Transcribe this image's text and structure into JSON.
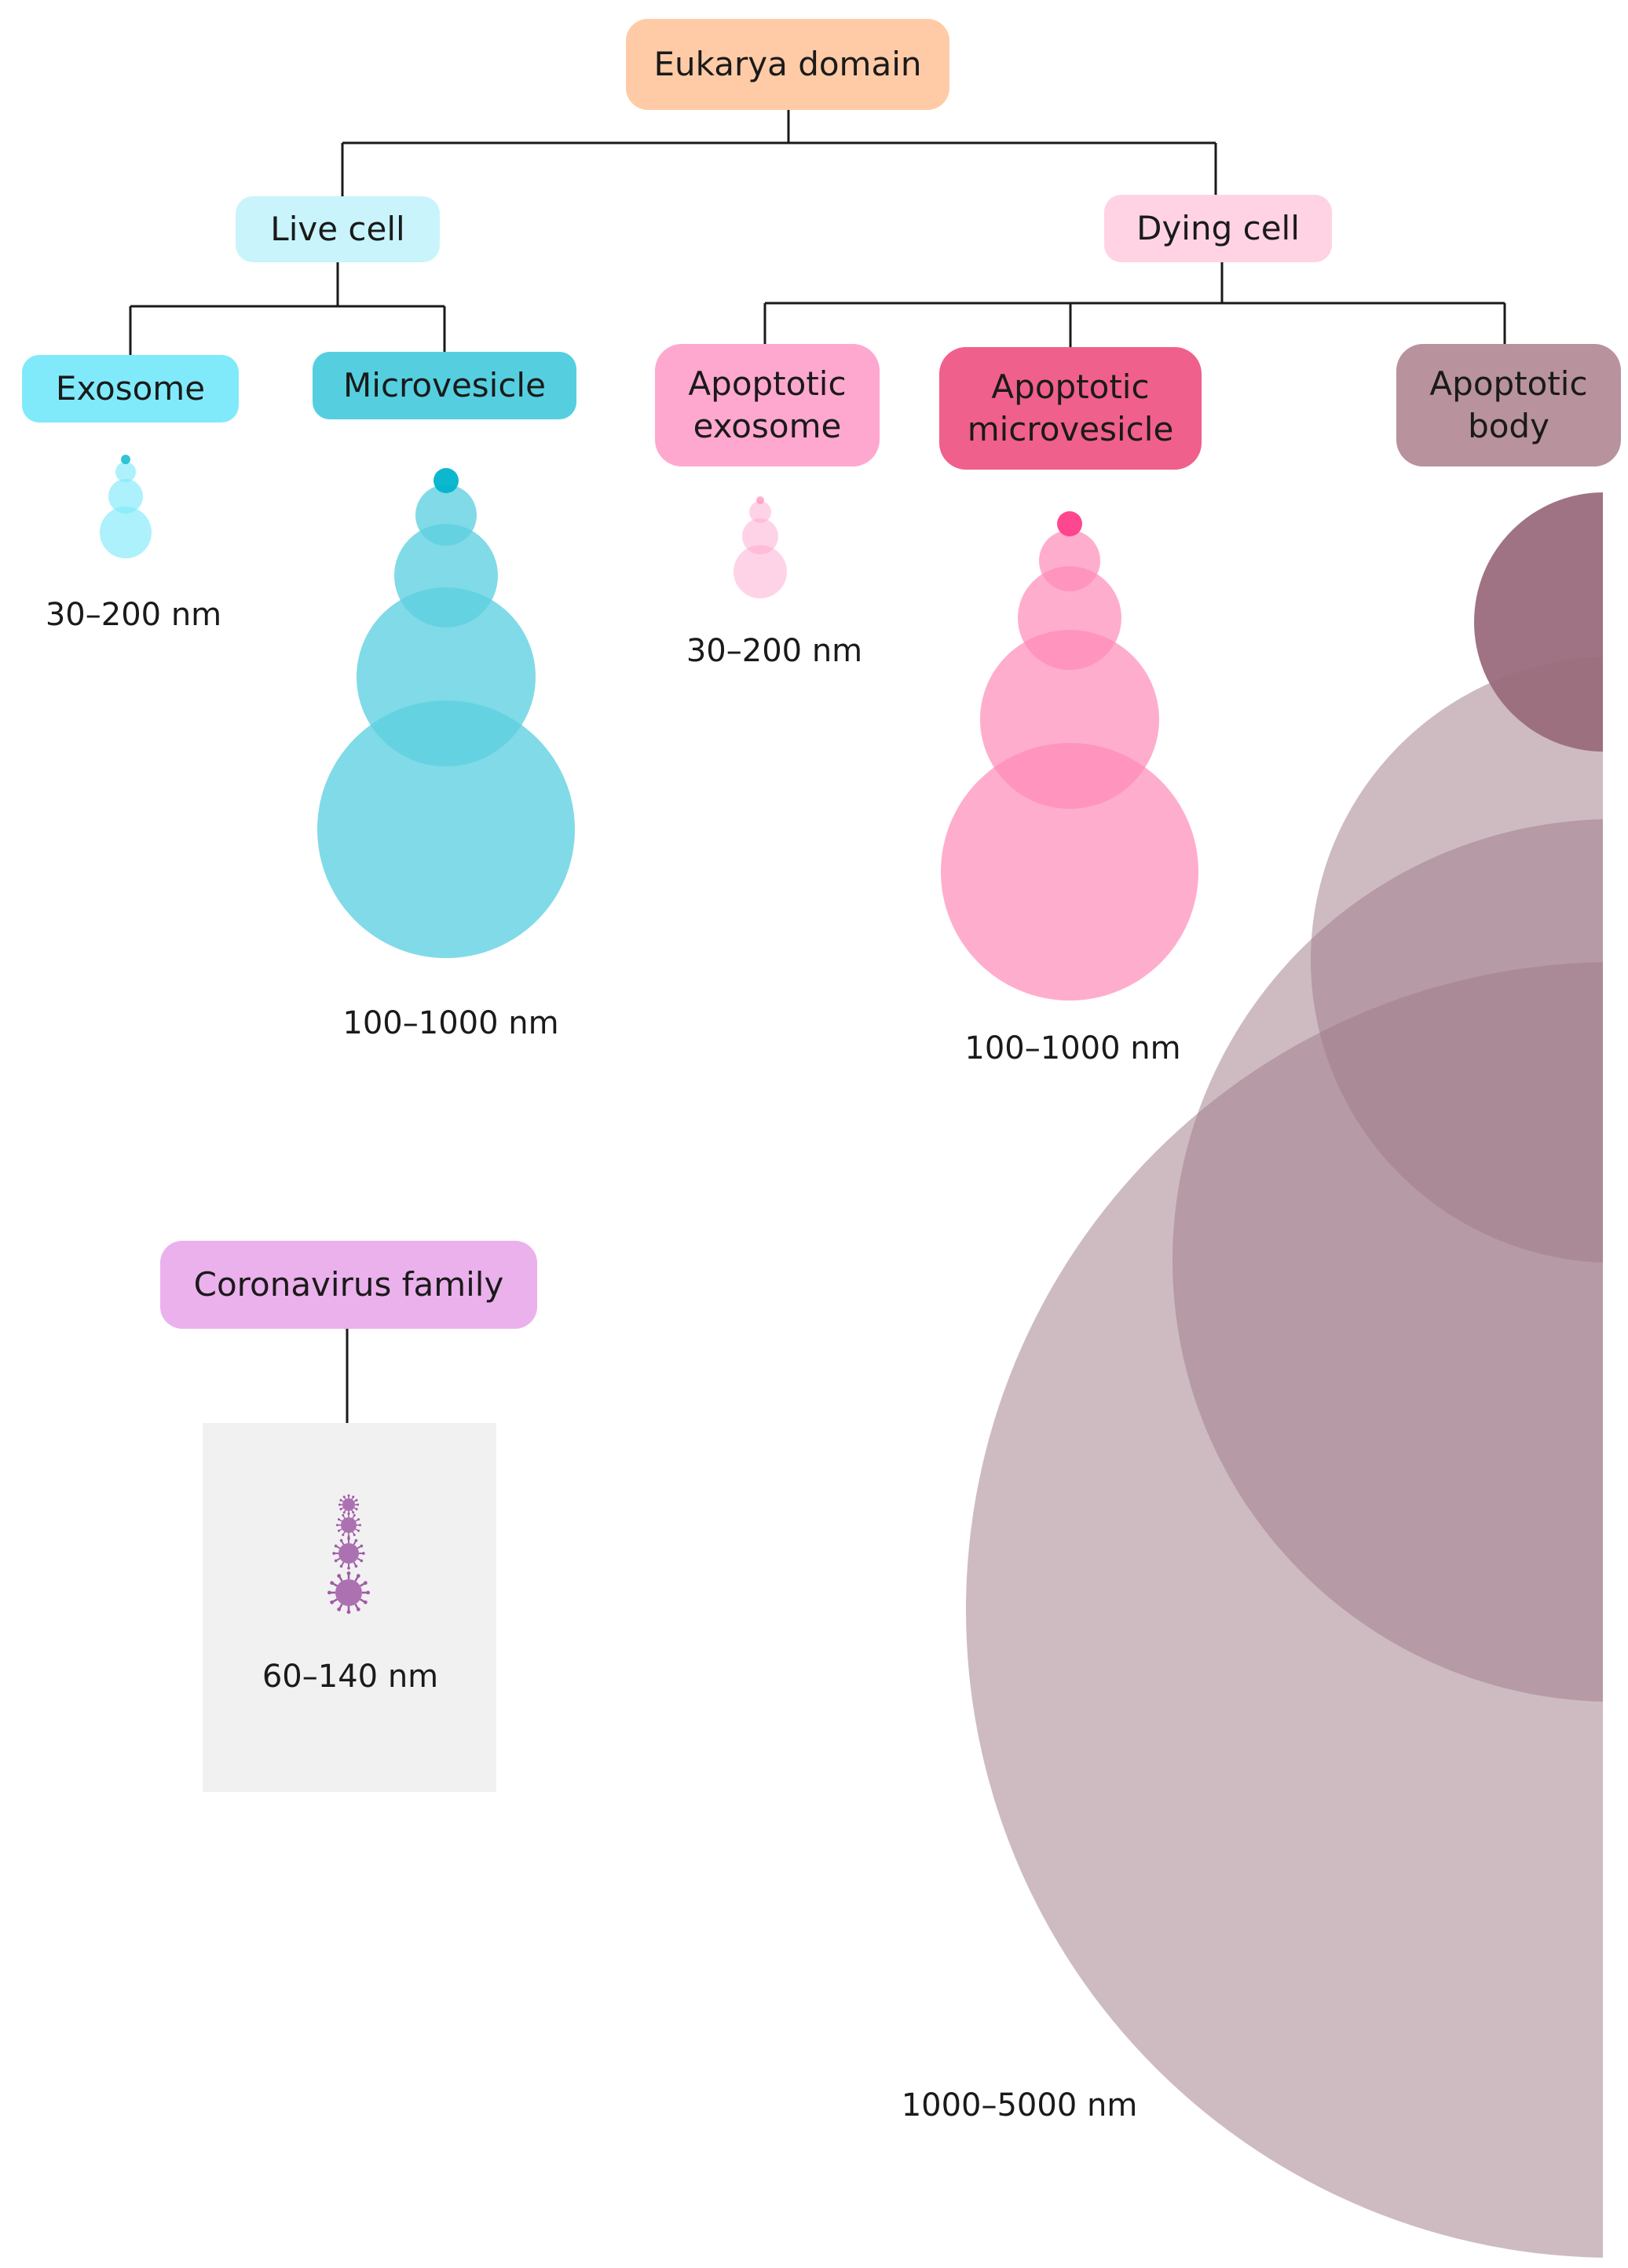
{
  "nodes": {
    "eukarya": {
      "label": "Eukarya domain",
      "color": "#ffcba6"
    },
    "live_cell": {
      "label": "Live cell",
      "color": "#c9f4fb"
    },
    "dying_cell": {
      "label": "Dying cell",
      "color": "#ffd3e3"
    },
    "exosome": {
      "label": "Exosome",
      "color": "#80eafa"
    },
    "microvesicle": {
      "label": "Microvesicle",
      "color": "#55cfe0"
    },
    "apoptotic_exosome": {
      "line1": "Apoptotic",
      "line2": "exosome",
      "color": "#ffa8cf"
    },
    "apoptotic_microvesicle": {
      "line1": "Apoptotic",
      "line2": "microvesicle",
      "color": "#f0608c"
    },
    "apoptotic_body": {
      "line1": "Apoptotic",
      "line2": "body",
      "color": "#b8929d"
    },
    "coronavirus": {
      "label": "Coronavirus family",
      "color": "#ebb1ec"
    }
  },
  "size_labels": {
    "exosome": "30–200 nm",
    "microvesicle": "100–1000 nm",
    "apoptotic_exosome": "30–200 nm",
    "apoptotic_microvesicle": "100–1000 nm",
    "apoptotic_body": "1000–5000 nm",
    "coronavirus": "60–140 nm"
  },
  "colors": {
    "line": "#1a1a1a",
    "cyan_fill": "#5ecfe0",
    "cyan_dark": "#00b4cc",
    "pink_fill": "#ff8ab8",
    "pink_dark": "#ff3d89",
    "mauve_fill": "#a27d8a",
    "mauve_dark": "#9a6c7c",
    "virus": "#a05aa6",
    "virus_box": "#f1f1f1"
  }
}
